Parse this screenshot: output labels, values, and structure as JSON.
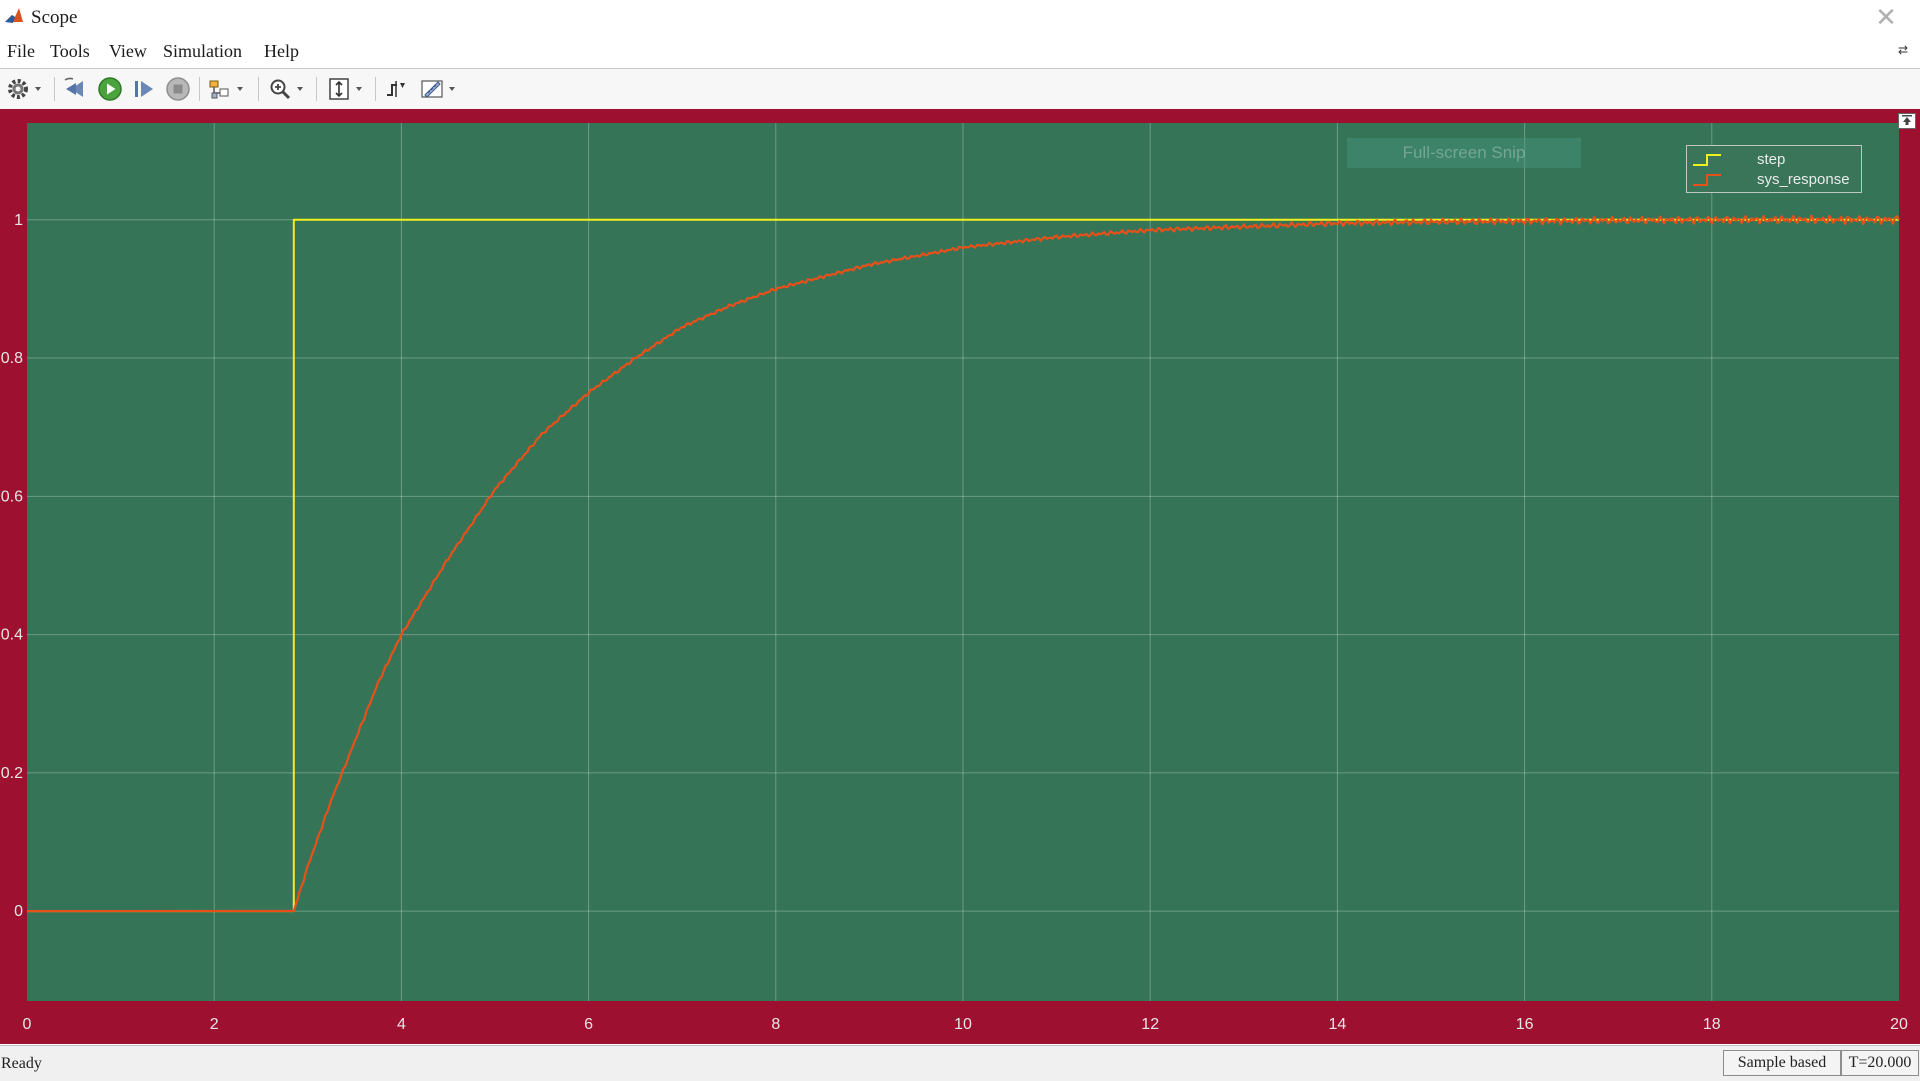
{
  "window": {
    "title": "Scope"
  },
  "menu": [
    "File",
    "Tools",
    "View",
    "Simulation",
    "Help"
  ],
  "toolbar": {
    "buttons": [
      "gear-icon",
      "step-back-icon",
      "run-icon",
      "step-forward-icon",
      "stop-icon",
      "highlight-icon",
      "zoom-icon",
      "autoscale-icon",
      "triggers-icon",
      "cursor-measurements-icon"
    ]
  },
  "scope": {
    "background_color": "#9e1030",
    "axes_color": "#367457",
    "grid": true
  },
  "overlay": {
    "snip_text": "Full-screen Snip"
  },
  "legend": {
    "position": "top-right"
  },
  "status": {
    "text": "Ready",
    "mode": "Sample based",
    "time": "T=20.000"
  },
  "chart_data": {
    "type": "line",
    "title": "",
    "xlabel": "",
    "ylabel": "",
    "xlim": [
      0,
      20
    ],
    "ylim": [
      -0.13,
      1.14
    ],
    "xticks": [
      0,
      2,
      4,
      6,
      8,
      10,
      12,
      14,
      16,
      18,
      20
    ],
    "yticks": [
      0,
      0.2,
      0.4,
      0.6,
      0.8,
      1
    ],
    "series": [
      {
        "name": "step",
        "color": "#f0f01e",
        "x": [
          0,
          2.85,
          2.85,
          20
        ],
        "y": [
          0,
          0,
          1,
          1
        ]
      },
      {
        "name": "sys_response",
        "color": "#e8501a",
        "x": [
          0,
          2.85,
          3.0,
          3.25,
          3.5,
          3.75,
          4.0,
          4.5,
          5.0,
          5.5,
          6.0,
          6.5,
          7.0,
          7.5,
          8.0,
          9.0,
          10.0,
          11.0,
          12.0,
          13.0,
          14.0,
          15.0,
          16.0,
          17.0,
          18.0,
          19.0,
          20.0
        ],
        "y": [
          0,
          0,
          0.065,
          0.16,
          0.245,
          0.33,
          0.4,
          0.51,
          0.61,
          0.69,
          0.75,
          0.8,
          0.845,
          0.875,
          0.9,
          0.935,
          0.96,
          0.975,
          0.985,
          0.99,
          0.995,
          0.997,
          0.998,
          0.999,
          1.0,
          1.0,
          1.0
        ]
      }
    ]
  }
}
